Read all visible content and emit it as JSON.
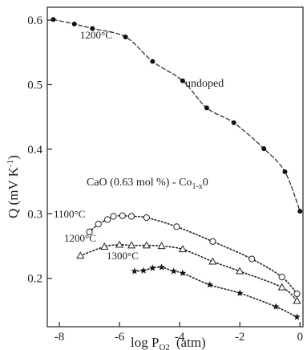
{
  "chart_data": {
    "type": "scatter",
    "xlabel": "log P",
    "xlabel_sub": "O2",
    "xlabel_unit": "(atm)",
    "ylabel": "Q  (mV K",
    "ylabel_sup": "-1",
    "ylabel_close": ")",
    "xlim": [
      -8.4,
      0.1
    ],
    "ylim": [
      0.125,
      0.62
    ],
    "x_ticks": [
      -8,
      -6,
      -4,
      -2,
      0
    ],
    "x_tick_labels": [
      "-8",
      "-6",
      "-4",
      "-2",
      "0"
    ],
    "y_ticks": [
      0.2,
      0.3,
      0.4,
      0.5,
      0.6
    ],
    "y_tick_labels": [
      "0.2",
      "0.3",
      "0.4",
      "0.5",
      "0.6"
    ],
    "grid": false,
    "group_label": "CaO (0.63 mol %) - Co",
    "group_label_sub": "1-x",
    "group_label_end": "0",
    "series": [
      {
        "label": "undoped",
        "marker": "filled-circle",
        "line": "dashed",
        "x": [
          -8.2,
          -7.5,
          -6.9,
          -5.8,
          -4.9,
          -3.9,
          -3.1,
          -2.2,
          -1.2,
          -0.5,
          0.0
        ],
        "y": [
          0.601,
          0.594,
          0.587,
          0.574,
          0.536,
          0.506,
          0.464,
          0.441,
          0.401,
          0.365,
          0.304
        ]
      },
      {
        "label": "1100°C",
        "marker": "open-circle",
        "line": "dotted",
        "x": [
          -7.0,
          -6.7,
          -6.4,
          -6.2,
          -5.9,
          -5.6,
          -5.1,
          -4.1,
          -2.9,
          -1.6,
          -0.6,
          -0.1
        ],
        "y": [
          0.272,
          0.284,
          0.291,
          0.296,
          0.297,
          0.296,
          0.294,
          0.28,
          0.257,
          0.23,
          0.202,
          0.176
        ]
      },
      {
        "label": "1200°C",
        "marker": "open-triangle",
        "line": "dotted",
        "x": [
          -7.3,
          -6.5,
          -6.0,
          -5.6,
          -5.1,
          -4.6,
          -3.9,
          -2.9,
          -2.0,
          -0.6,
          -0.1
        ],
        "y": [
          0.235,
          0.249,
          0.252,
          0.251,
          0.251,
          0.25,
          0.245,
          0.226,
          0.211,
          0.186,
          0.165
        ]
      },
      {
        "label": "1300°C",
        "marker": "star",
        "line": "dotted",
        "x": [
          -5.5,
          -5.2,
          -4.9,
          -4.6,
          -4.2,
          -3.9,
          -3.0,
          -2.0,
          -0.8,
          -0.1
        ],
        "y": [
          0.211,
          0.212,
          0.216,
          0.217,
          0.211,
          0.208,
          0.19,
          0.177,
          0.156,
          0.14
        ]
      }
    ],
    "annotations": [
      {
        "text": "1200°C",
        "series": 0
      },
      {
        "text": "undoped",
        "series": 0
      },
      {
        "text": "1100°C",
        "series": 1
      },
      {
        "text": "1200°C",
        "series": 2
      },
      {
        "text": "1300°C",
        "series": 3
      }
    ]
  }
}
